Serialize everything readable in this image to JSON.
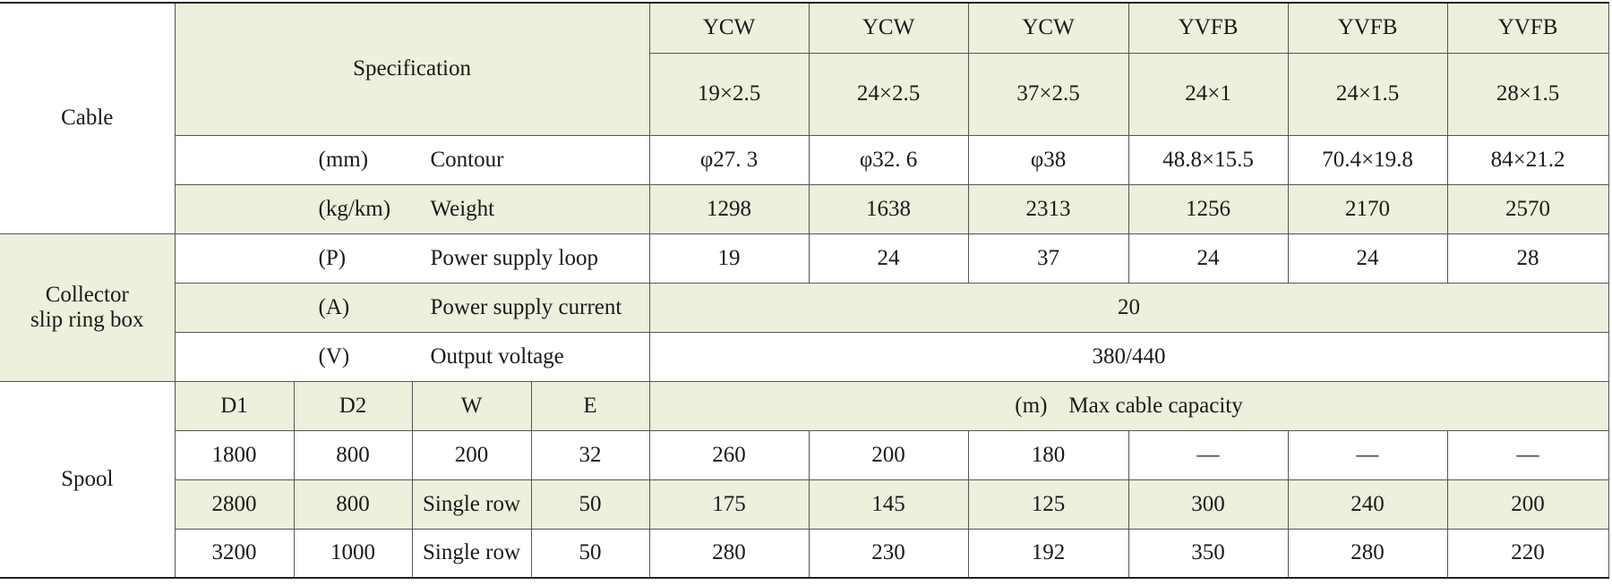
{
  "cable": {
    "label": "Cable",
    "spec_label": "Specification",
    "models": [
      "YCW",
      "YCW",
      "YCW",
      "YVFB",
      "YVFB",
      "YVFB"
    ],
    "sizes": [
      "19×2.5",
      "24×2.5",
      "37×2.5",
      "24×1",
      "24×1.5",
      "28×1.5"
    ],
    "rows": [
      {
        "unit": "(mm)",
        "name": "Contour",
        "values": [
          "φ27. 3",
          "φ32. 6",
          "φ38",
          "48.8×15.5",
          "70.4×19.8",
          "84×21.2"
        ]
      },
      {
        "unit": "(kg/km)",
        "name": "Weight",
        "values": [
          1298,
          1638,
          2313,
          1256,
          2170,
          2570
        ]
      }
    ]
  },
  "collector": {
    "label_lines": [
      "Collector",
      "slip ring box"
    ],
    "loop": {
      "unit": "(P)",
      "name": "Power supply loop",
      "values": [
        19,
        24,
        37,
        24,
        24,
        28
      ]
    },
    "current": {
      "unit": "(A)",
      "name": "Power supply current",
      "value": 20
    },
    "voltage": {
      "unit": "(V)",
      "name": "Output voltage",
      "value": "380/440"
    }
  },
  "spool": {
    "label": "Spool",
    "columns": [
      "D1",
      "D2",
      "W",
      "E"
    ],
    "capacity_unit": "(m)",
    "capacity_label": "Max cable capacity",
    "rows": [
      [
        1800,
        800,
        200,
        32,
        260,
        200,
        180,
        "—",
        "—",
        "—"
      ],
      [
        2800,
        800,
        "Single row",
        50,
        175,
        145,
        125,
        300,
        240,
        200
      ],
      [
        3200,
        1000,
        "Single row",
        50,
        280,
        230,
        192,
        350,
        280,
        220
      ]
    ]
  }
}
